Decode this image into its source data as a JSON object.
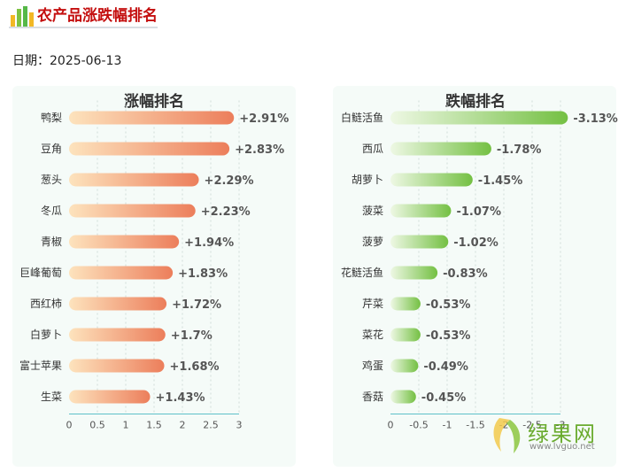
{
  "header": {
    "title": "农产品涨跌幅排名",
    "date_label": "日期：2025-06-13"
  },
  "watermark": {
    "brand": "绿果网",
    "url": "www.lvguo.net"
  },
  "colors": {
    "title_red": "#c40f0f",
    "rise_start": "#fde3bd",
    "rise_end": "#ec7e5b",
    "fall_start": "#eef8e4",
    "fall_end": "#74c043",
    "axis_line": "#5ec1c9"
  },
  "chart_data": [
    {
      "type": "bar",
      "orientation": "horizontal",
      "title": "涨幅排名",
      "categories": [
        "鸭梨",
        "豆角",
        "葱头",
        "冬瓜",
        "青椒",
        "巨峰葡萄",
        "西红柿",
        "白萝卜",
        "富士苹果",
        "生菜"
      ],
      "values": [
        2.91,
        2.83,
        2.29,
        2.23,
        1.94,
        1.83,
        1.72,
        1.7,
        1.68,
        1.43
      ],
      "value_labels": [
        "+2.91%",
        "+2.83%",
        "+2.29%",
        "+2.23%",
        "+1.94%",
        "+1.83%",
        "+1.72%",
        "+1.7%",
        "+1.68%",
        "+1.43%"
      ],
      "xlim": [
        0,
        3
      ],
      "xticks": [
        0,
        0.5,
        1,
        1.5,
        2,
        2.5,
        3
      ],
      "xtick_labels": [
        "0",
        "0.5",
        "1",
        "1.5",
        "2",
        "2.5",
        "3"
      ],
      "grid": true
    },
    {
      "type": "bar",
      "orientation": "horizontal",
      "title": "跌幅排名",
      "categories": [
        "白鲢活鱼",
        "西瓜",
        "胡萝卜",
        "菠菜",
        "菠萝",
        "花鲢活鱼",
        "芹菜",
        "菜花",
        "鸡蛋",
        "香菇"
      ],
      "values": [
        -3.13,
        -1.78,
        -1.45,
        -1.07,
        -1.02,
        -0.83,
        -0.53,
        -0.53,
        -0.49,
        -0.45
      ],
      "value_labels": [
        "-3.13%",
        "-1.78%",
        "-1.45%",
        "-1.07%",
        "-1.02%",
        "-0.83%",
        "-0.53%",
        "-0.53%",
        "-0.49%",
        "-0.45%"
      ],
      "xlim": [
        0,
        -3
      ],
      "xticks": [
        0,
        -0.5,
        -1,
        -1.5,
        -2,
        -2.5,
        -3
      ],
      "xtick_labels": [
        "0",
        "-0.5",
        "-1",
        "-1.5",
        "-2",
        "-2.5",
        "-3"
      ],
      "grid": true
    }
  ]
}
